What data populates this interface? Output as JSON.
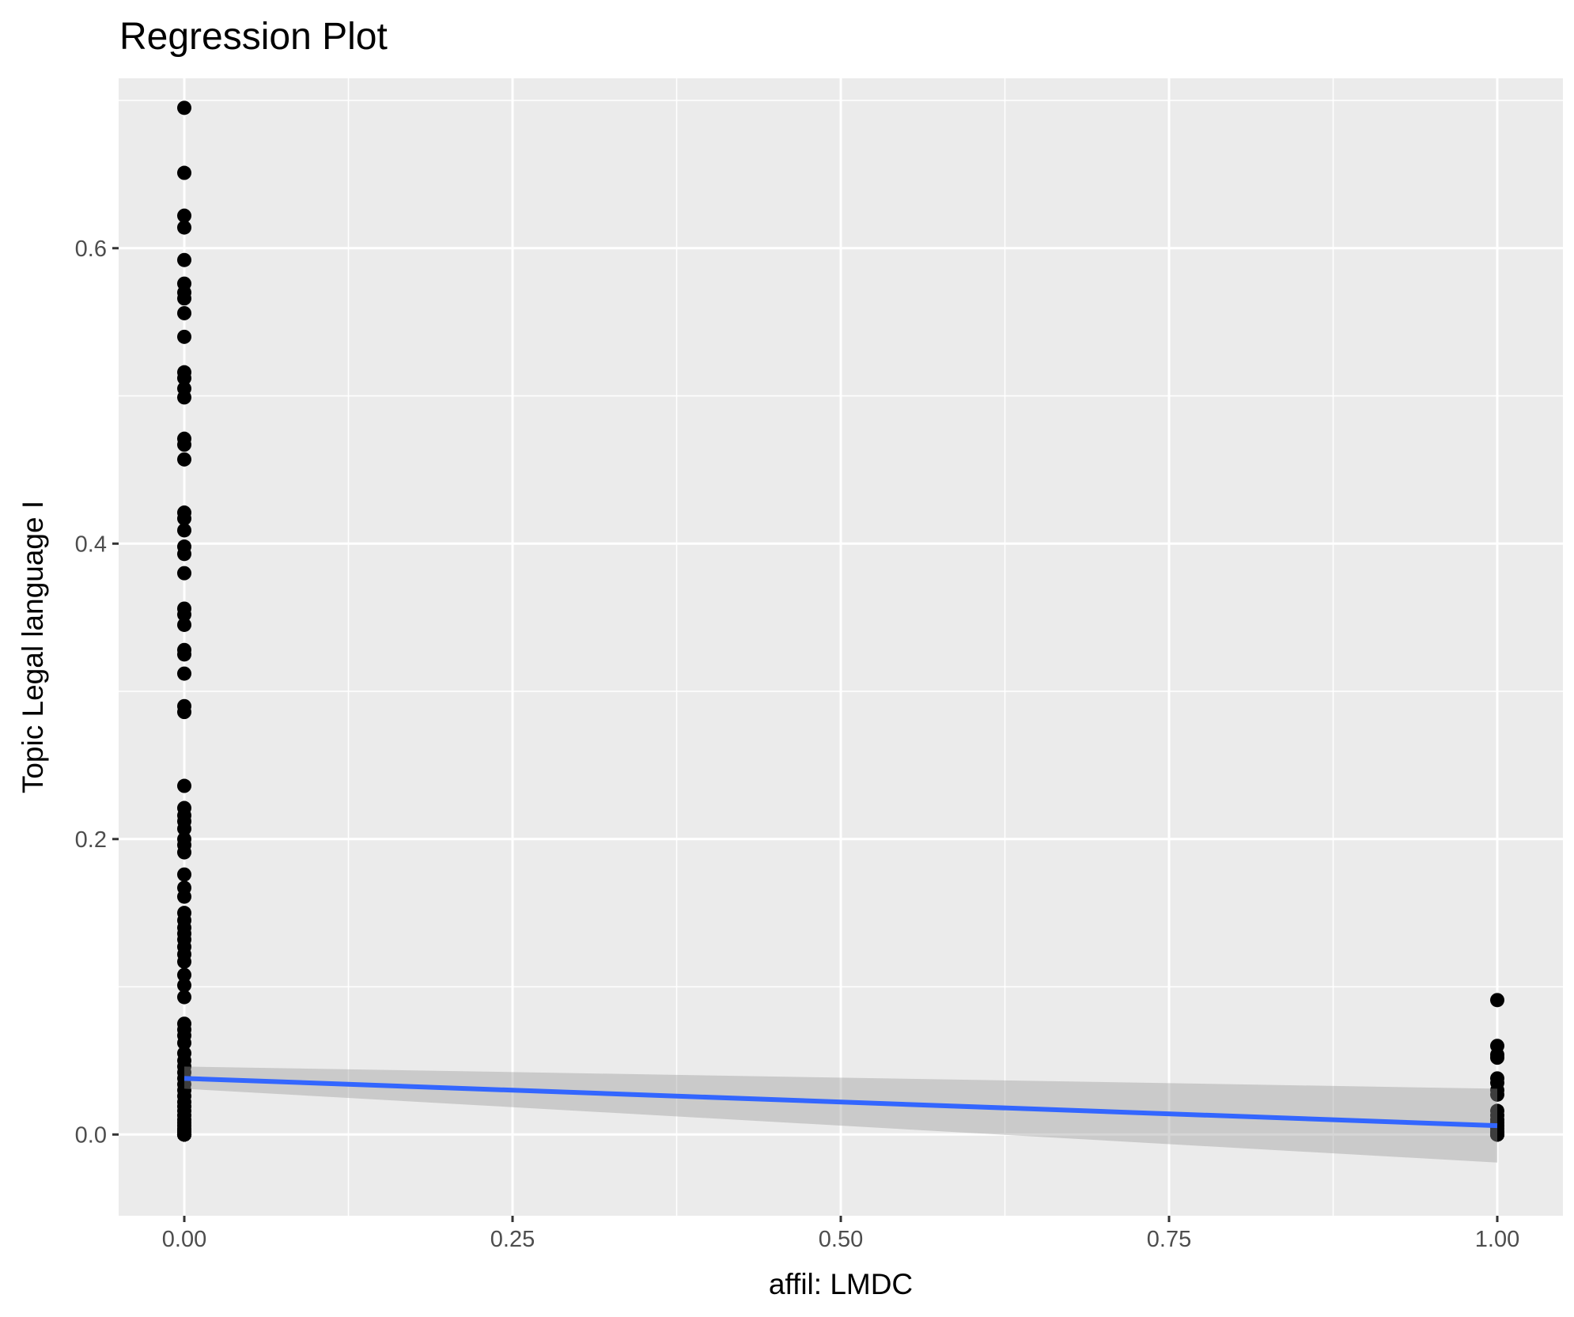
{
  "chart_data": {
    "type": "scatter",
    "title": "Regression Plot",
    "xlabel": "affil: LMDC",
    "ylabel": "Topic Legal language I",
    "xlim": [
      -0.05,
      1.05
    ],
    "ylim": [
      -0.055,
      0.715
    ],
    "x_ticks": [
      0.0,
      0.25,
      0.5,
      0.75,
      1.0
    ],
    "x_tick_labels": [
      "0.00",
      "0.25",
      "0.50",
      "0.75",
      "1.00"
    ],
    "y_ticks": [
      0.0,
      0.2,
      0.4,
      0.6
    ],
    "y_tick_labels": [
      "0.0",
      "0.2",
      "0.4",
      "0.6"
    ],
    "grid": true,
    "legend": "none",
    "colors": {
      "panel": "#ebebeb",
      "grid": "#ffffff",
      "points": "#000000",
      "line": "#3366ff",
      "band": "#999999"
    },
    "series": [
      {
        "x": [
          0,
          0,
          0,
          0,
          0,
          0,
          0,
          0,
          0,
          0,
          0,
          0,
          0,
          0,
          0,
          0,
          0,
          0,
          0,
          0,
          0,
          0,
          0,
          0,
          0,
          0,
          0,
          0,
          0,
          0,
          0,
          0,
          0,
          0,
          0,
          0,
          0,
          0,
          0,
          0,
          0,
          0,
          0,
          0,
          0,
          0,
          0,
          0,
          0,
          0,
          0,
          0,
          0,
          0,
          0,
          0,
          0,
          0,
          0,
          0,
          0,
          0,
          0,
          0,
          0,
          0,
          0,
          0,
          0,
          0,
          0,
          0,
          0,
          0,
          0,
          0,
          0,
          0,
          0,
          0,
          0,
          0,
          0,
          0,
          0,
          0,
          0,
          0,
          0,
          0,
          0,
          0,
          0,
          0,
          0,
          0,
          0,
          0,
          0,
          0,
          0,
          0,
          0,
          0,
          0,
          0,
          0,
          0,
          0,
          0,
          0,
          0,
          0,
          0,
          0,
          0,
          0,
          0,
          1,
          1,
          1,
          1,
          1,
          1,
          1,
          1,
          1,
          1,
          1,
          1,
          1,
          1,
          1,
          1,
          1,
          1,
          1,
          1,
          1,
          1,
          1,
          1
        ],
        "y": [
          0.695,
          0.651,
          0.622,
          0.614,
          0.592,
          0.576,
          0.57,
          0.566,
          0.556,
          0.54,
          0.516,
          0.512,
          0.505,
          0.499,
          0.471,
          0.467,
          0.457,
          0.421,
          0.417,
          0.409,
          0.398,
          0.393,
          0.38,
          0.356,
          0.352,
          0.345,
          0.328,
          0.325,
          0.312,
          0.29,
          0.286,
          0.236,
          0.221,
          0.216,
          0.212,
          0.207,
          0.2,
          0.196,
          0.191,
          0.176,
          0.167,
          0.161,
          0.15,
          0.145,
          0.14,
          0.136,
          0.132,
          0.127,
          0.122,
          0.117,
          0.108,
          0.101,
          0.093,
          0.075,
          0.071,
          0.067,
          0.062,
          0.055,
          0.05,
          0.046,
          0.042,
          0.038,
          0.034,
          0.03,
          0.026,
          0.022,
          0.019,
          0.016,
          0.013,
          0.01,
          0.008,
          0.006,
          0.004,
          0.003,
          0.002,
          0.001,
          0.0,
          0.0,
          0.0,
          0.0,
          0.0,
          0.0,
          0.0,
          0.0,
          0.0,
          0.0,
          0.0,
          0.0,
          0.0,
          0.0,
          0.0,
          0.0,
          0.0,
          0.0,
          0.0,
          0.0,
          0.0,
          0.0,
          0.0,
          0.0,
          0.0,
          0.0,
          0.0,
          0.0,
          0.0,
          0.0,
          0.0,
          0.0,
          0.0,
          0.0,
          0.0,
          0.0,
          0.0,
          0.0,
          0.0,
          0.0,
          0.0,
          0.0,
          0.091,
          0.06,
          0.054,
          0.052,
          0.038,
          0.035,
          0.03,
          0.027,
          0.016,
          0.013,
          0.01,
          0.008,
          0.006,
          0.004,
          0.002,
          0.001,
          0.0,
          0.0,
          0.0,
          0.0,
          0.0,
          0.0,
          0.0,
          0.0
        ]
      }
    ],
    "fit": {
      "x": [
        0.0,
        1.0
      ],
      "y": [
        0.038,
        0.006
      ]
    },
    "band": {
      "x": [
        0.0,
        1.0
      ],
      "lower": [
        0.031,
        -0.019
      ],
      "upper": [
        0.046,
        0.031
      ]
    }
  }
}
